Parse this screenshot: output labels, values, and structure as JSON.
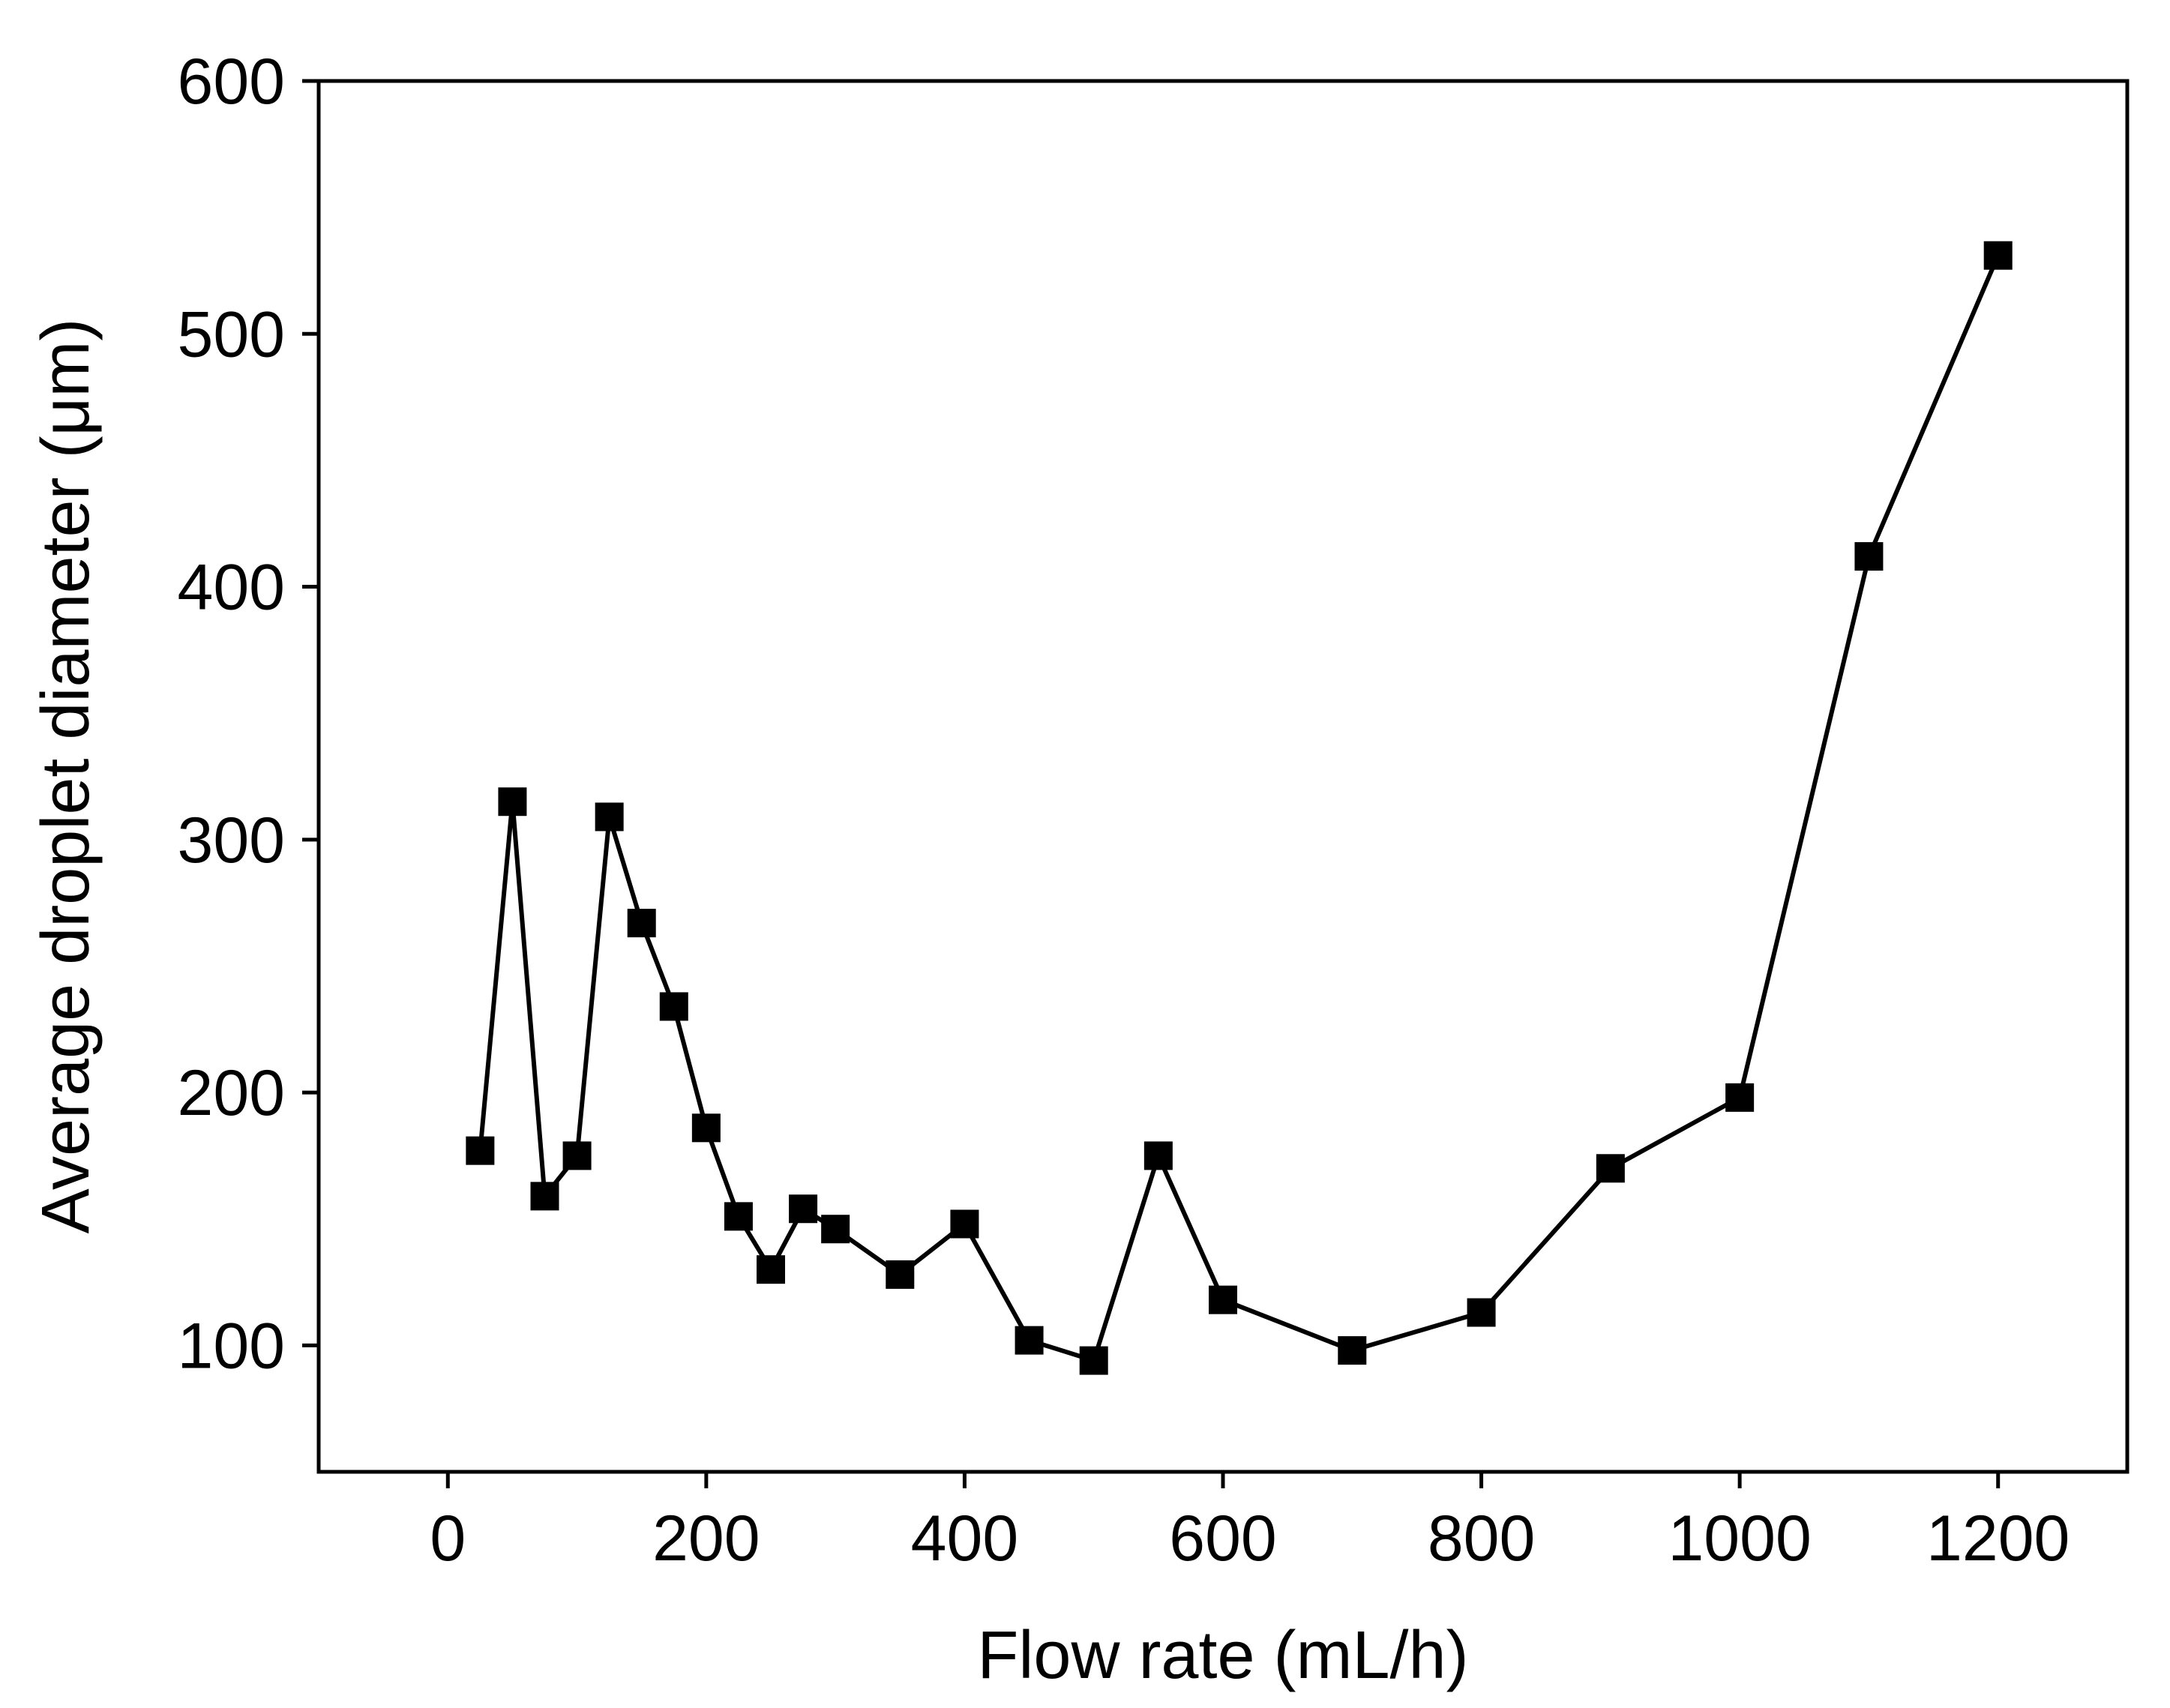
{
  "chart_data": {
    "type": "line",
    "xlabel": "Flow rate (mL/h)",
    "ylabel": "Average droplet diameter (μm)",
    "xlim": [
      -100,
      1300
    ],
    "ylim": [
      50,
      600
    ],
    "xticks": [
      0,
      200,
      400,
      600,
      800,
      1000,
      1200
    ],
    "yticks": [
      100,
      200,
      300,
      400,
      500,
      600
    ],
    "x_tick_labels": [
      "0",
      "200",
      "400",
      "600",
      "800",
      "1000",
      "1200"
    ],
    "y_tick_labels": [
      "100",
      "200",
      "300",
      "400",
      "500",
      "600"
    ],
    "marker": "square",
    "series": [
      {
        "x": [
          25,
          50,
          75,
          100,
          125,
          150,
          175,
          200,
          225,
          250,
          275,
          300,
          350,
          400,
          450,
          500,
          550,
          600,
          700,
          800,
          900,
          1000,
          1100,
          1200
        ],
        "values": [
          177,
          315,
          159,
          175,
          309,
          267,
          234,
          186,
          151,
          130,
          154,
          146,
          128,
          148,
          102,
          94,
          175,
          118,
          98,
          113,
          170,
          198,
          412,
          531
        ]
      }
    ],
    "colors": {
      "line": "#000000",
      "marker": "#000000",
      "axis": "#000000"
    }
  }
}
